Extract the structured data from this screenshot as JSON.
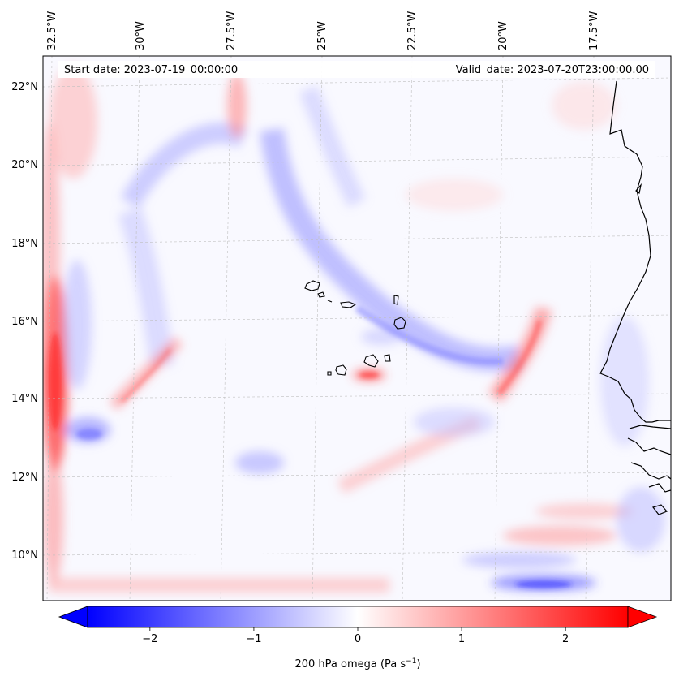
{
  "header": {
    "start_date": "Start date: 2023-07-19_00:00:00",
    "valid_date": "Valid_date: 2023-07-20T23:00:00.00"
  },
  "map": {
    "lon_labels": [
      "32.5°W",
      "30°W",
      "27.5°W",
      "25°W",
      "22.5°W",
      "20°W",
      "17.5°W"
    ],
    "lat_labels": [
      "22°N",
      "20°N",
      "18°N",
      "16°N",
      "14°N",
      "12°N",
      "10°N"
    ],
    "land_outline_color": "#000000",
    "gridline_color": "#bfbfbf"
  },
  "colorbar": {
    "label_main": "200 hPa omega (Pa s",
    "label_exp": "−1",
    "label_close": ")",
    "ticks": [
      "−2",
      "−1",
      "0",
      "1",
      "2"
    ],
    "tick_values": [
      -2,
      -1,
      0,
      1,
      2
    ],
    "range": [
      -2.6,
      2.6
    ],
    "colormap": "bwr",
    "color_min": "#0000ff",
    "color_mid": "#ffffff",
    "color_max": "#ff0000",
    "extend": "both"
  }
}
